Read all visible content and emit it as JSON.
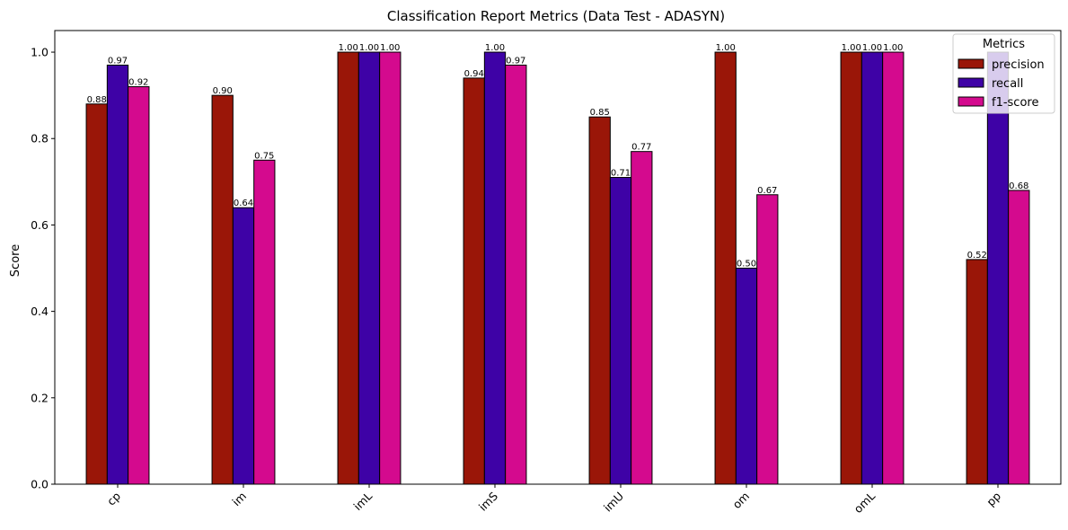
{
  "chart_data": {
    "type": "bar",
    "title": "Classification Report Metrics (Data Test - ADASYN)",
    "xlabel": "",
    "ylabel": "Score",
    "ylim": [
      0,
      1.05
    ],
    "yticks": [
      0.0,
      0.2,
      0.4,
      0.6,
      0.8,
      1.0
    ],
    "ytick_labels": [
      "0.0",
      "0.2",
      "0.4",
      "0.6",
      "0.8",
      "1.0"
    ],
    "categories": [
      "cp",
      "im",
      "imL",
      "imS",
      "imU",
      "om",
      "omL",
      "pp"
    ],
    "x_tick_rotation": 45,
    "series": [
      {
        "name": "precision",
        "color": "#9a1608",
        "values": [
          0.88,
          0.9,
          1.0,
          0.94,
          0.85,
          1.0,
          1.0,
          0.52
        ],
        "labels": [
          "0.88",
          "0.90",
          "1.00",
          "0.94",
          "0.85",
          "1.00",
          "1.00",
          "0.52"
        ]
      },
      {
        "name": "recall",
        "color": "#3e02a6",
        "values": [
          0.97,
          0.64,
          1.0,
          1.0,
          0.71,
          0.5,
          1.0,
          1.0
        ],
        "labels": [
          "0.97",
          "0.64",
          "1.00",
          "1.00",
          "0.71",
          "0.50",
          "1.00",
          null
        ]
      },
      {
        "name": "f1-score",
        "color": "#d40a8e",
        "values": [
          0.92,
          0.75,
          1.0,
          0.97,
          0.77,
          0.67,
          1.0,
          0.68
        ],
        "labels": [
          "0.92",
          "0.75",
          "1.00",
          "0.97",
          "0.77",
          "0.67",
          "1.00",
          "0.68"
        ]
      }
    ],
    "legend": {
      "title": "Metrics",
      "position": "top-right"
    },
    "grid": false
  }
}
